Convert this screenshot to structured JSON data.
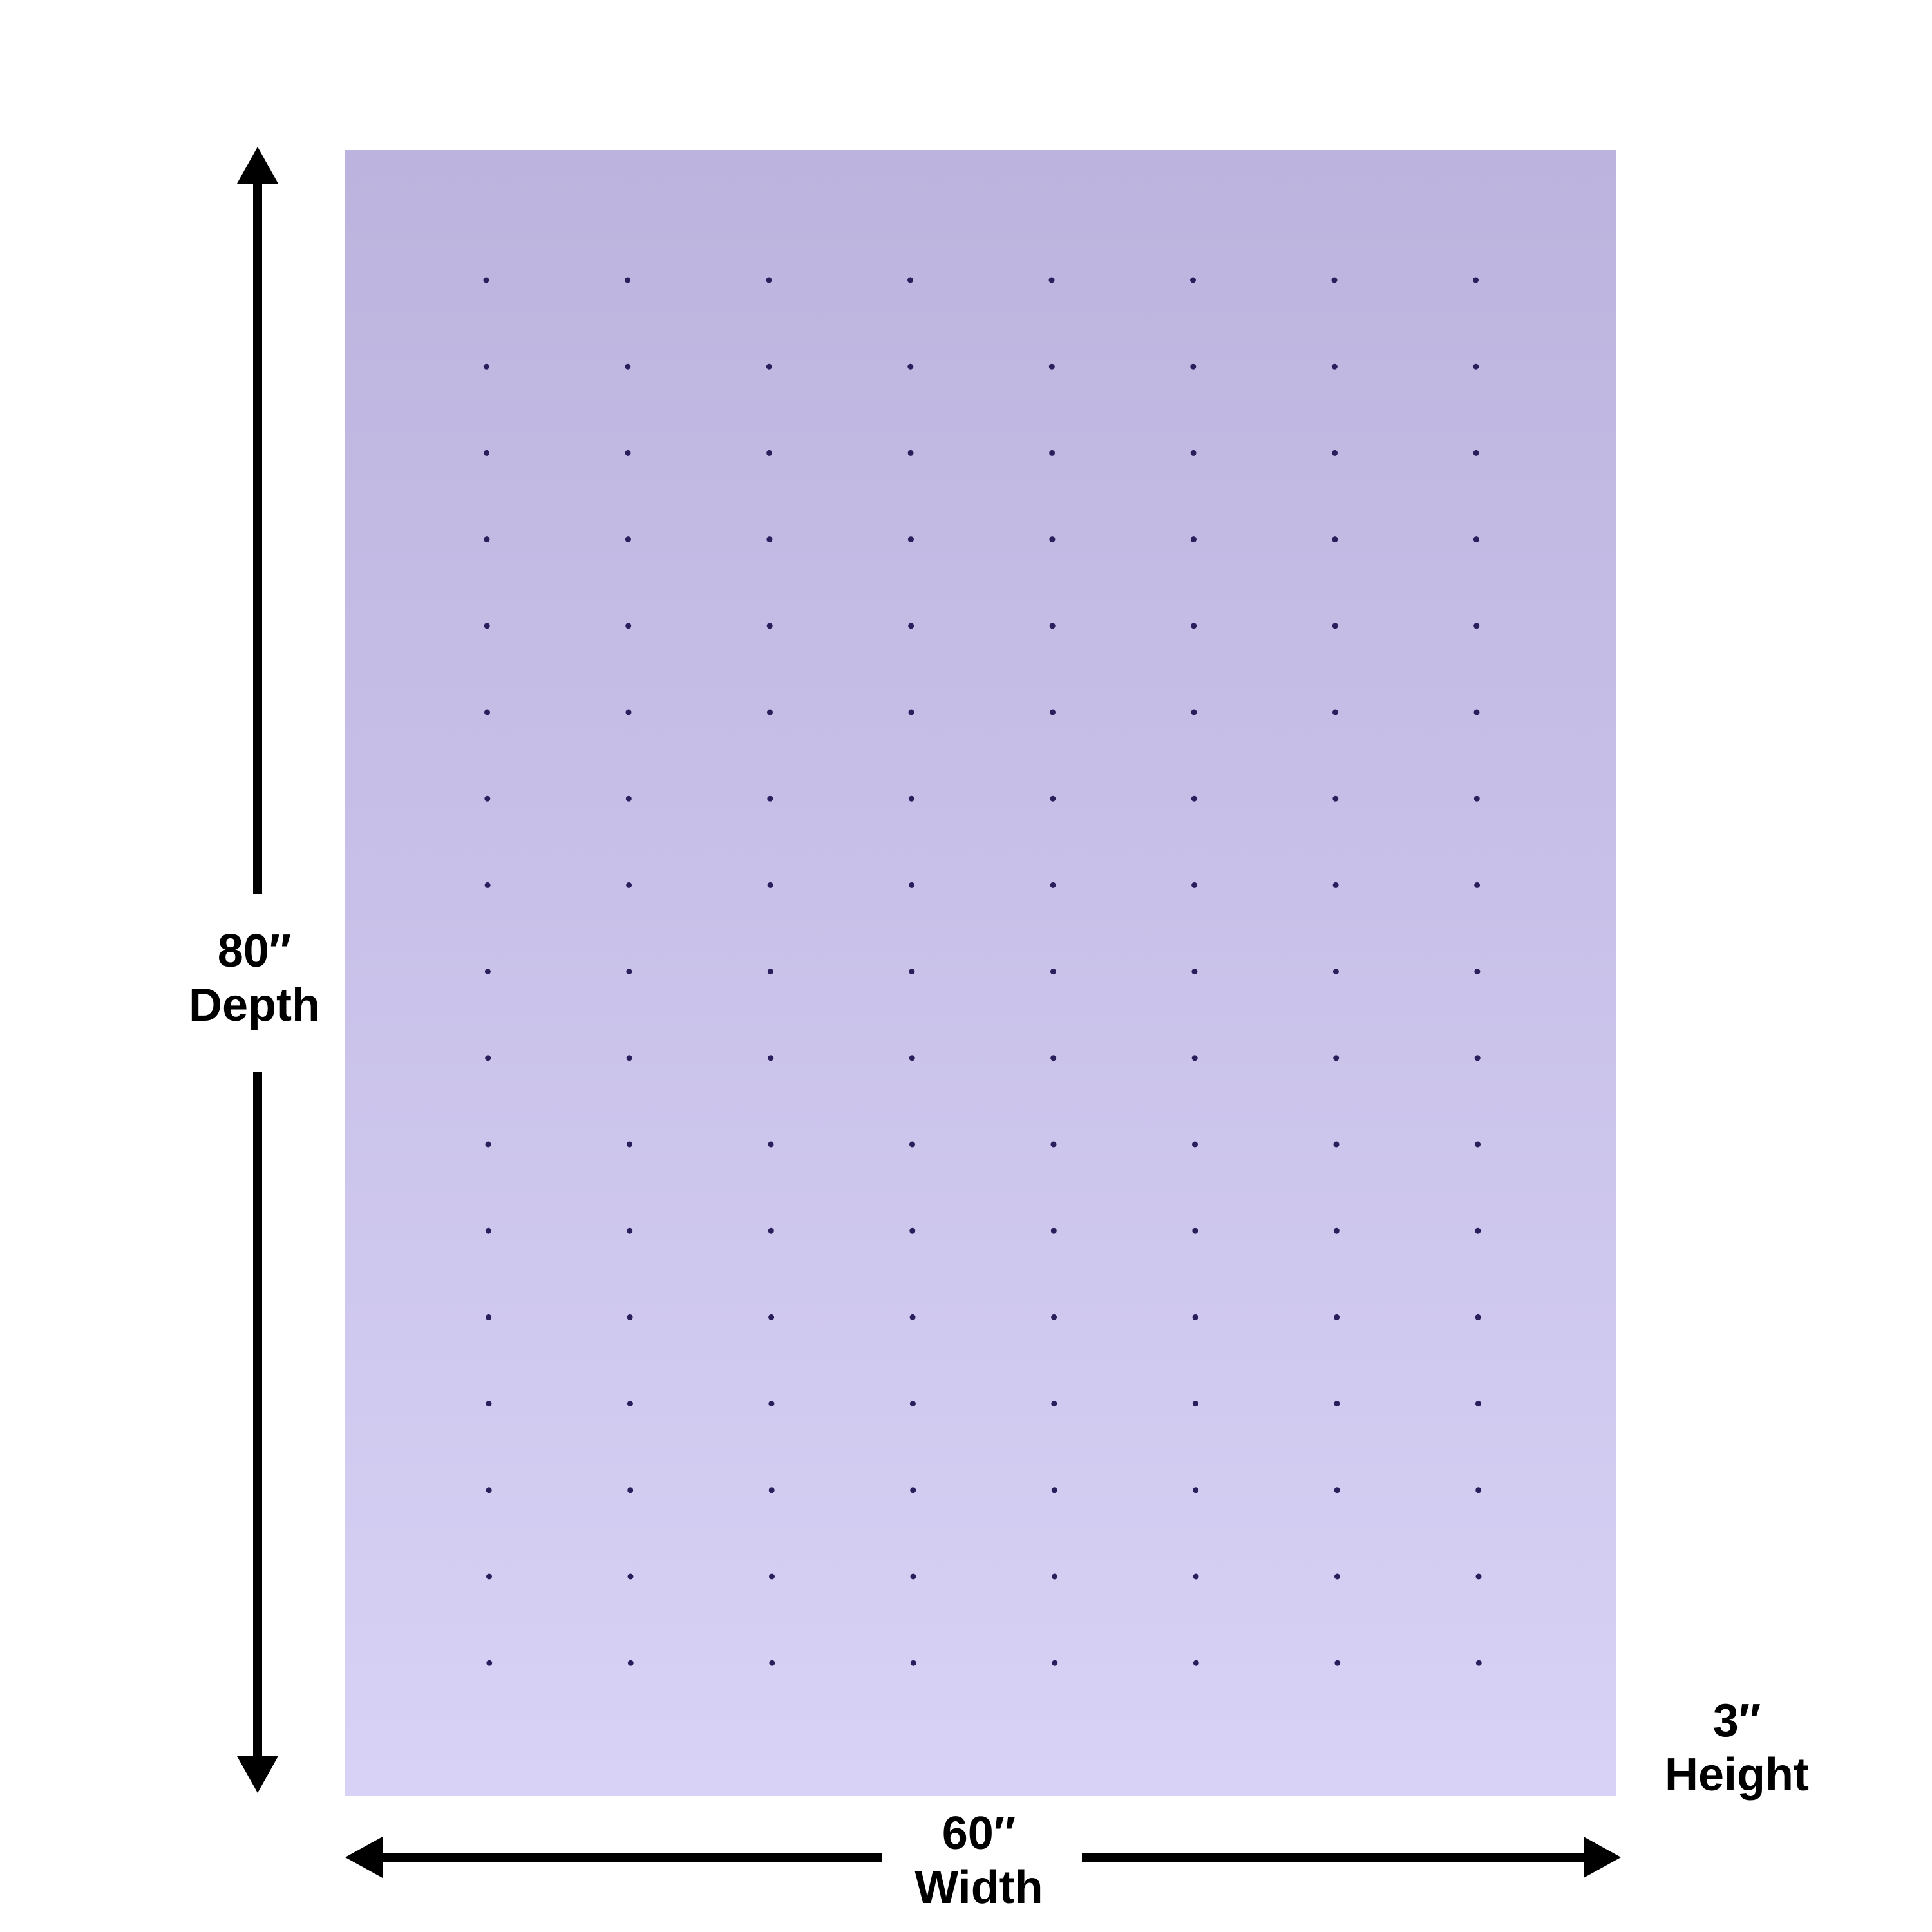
{
  "product": {
    "color": "#c8c0e8",
    "perforation_columns": 8,
    "perforation_rows": 17
  },
  "dimensions": {
    "depth": {
      "value": "80″",
      "label": "Depth"
    },
    "width": {
      "value": "60″",
      "label": "Width"
    },
    "height": {
      "value": "3″",
      "label": "Height"
    }
  }
}
